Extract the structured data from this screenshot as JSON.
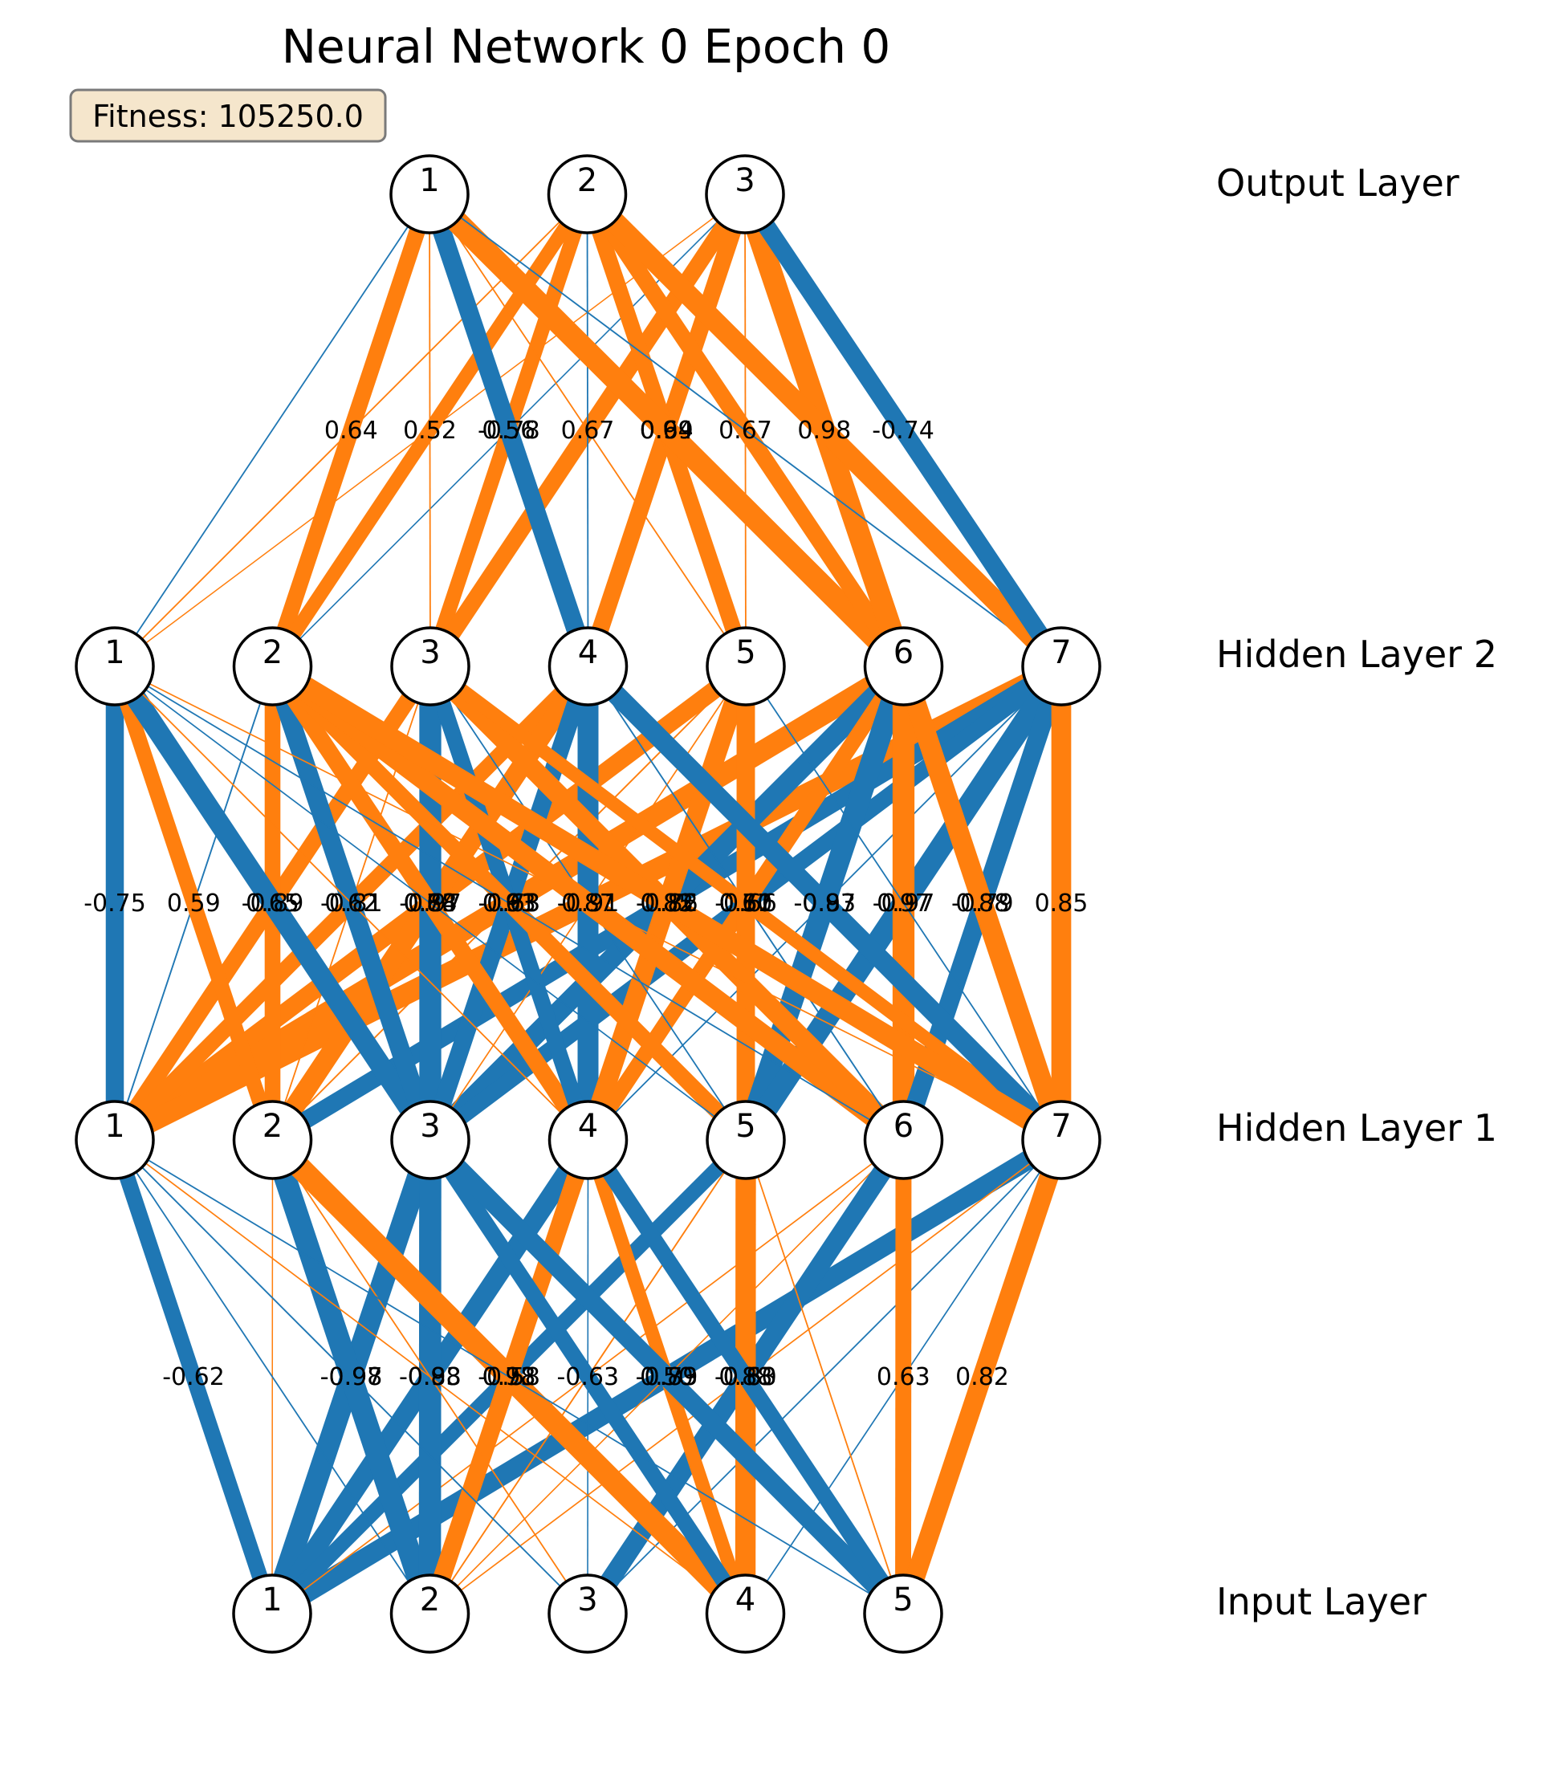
{
  "title": "Neural Network 0 Epoch 0",
  "fitness": "Fitness: 105250.0",
  "colors": {
    "positive": "#ff7f0e",
    "negative": "#1f77b4",
    "fitness_box_bg": "#f5e6cc",
    "fitness_box_border": "#7a7a7a"
  },
  "layers": [
    {
      "name": "Input Layer",
      "nodes": [
        "1",
        "2",
        "3",
        "4",
        "5"
      ]
    },
    {
      "name": "Hidden Layer 1",
      "nodes": [
        "1",
        "2",
        "3",
        "4",
        "5",
        "6",
        "7"
      ]
    },
    {
      "name": "Hidden Layer 2",
      "nodes": [
        "1",
        "2",
        "3",
        "4",
        "5",
        "6",
        "7"
      ]
    },
    {
      "name": "Output Layer",
      "nodes": [
        "1",
        "2",
        "3"
      ]
    }
  ],
  "edges": [
    {
      "from": [
        0,
        0
      ],
      "to": [
        1,
        0
      ],
      "w": -0.62,
      "label": "-0.62"
    },
    {
      "from": [
        0,
        0
      ],
      "to": [
        1,
        2
      ],
      "w": -0.97,
      "label": "-0.97"
    },
    {
      "from": [
        0,
        0
      ],
      "to": [
        1,
        3
      ],
      "w": -0.83,
      "label": "-0.83"
    },
    {
      "from": [
        0,
        0
      ],
      "to": [
        1,
        6
      ],
      "w": -0.83,
      "label": "-0.83"
    },
    {
      "from": [
        0,
        0
      ],
      "to": [
        1,
        4
      ],
      "w": -0.58,
      "label": "-0.58"
    },
    {
      "from": [
        0,
        0
      ],
      "to": [
        1,
        1
      ],
      "w": 0.05
    },
    {
      "from": [
        0,
        0
      ],
      "to": [
        1,
        5
      ],
      "w": 0.08
    },
    {
      "from": [
        0,
        1
      ],
      "to": [
        1,
        1
      ],
      "w": -0.98,
      "label": "-0.98"
    },
    {
      "from": [
        0,
        1
      ],
      "to": [
        1,
        2
      ],
      "w": -0.98,
      "label": "-0.98"
    },
    {
      "from": [
        0,
        1
      ],
      "to": [
        1,
        3
      ],
      "w": 0.73,
      "label": "0.73"
    },
    {
      "from": [
        0,
        1
      ],
      "to": [
        1,
        0
      ],
      "w": -0.1
    },
    {
      "from": [
        0,
        1
      ],
      "to": [
        1,
        4
      ],
      "w": 0.12
    },
    {
      "from": [
        0,
        1
      ],
      "to": [
        1,
        5
      ],
      "w": 0.06
    },
    {
      "from": [
        0,
        1
      ],
      "to": [
        1,
        6
      ],
      "w": 0.09
    },
    {
      "from": [
        0,
        2
      ],
      "to": [
        1,
        5
      ],
      "w": -0.8,
      "label": "-0.80"
    },
    {
      "from": [
        0,
        2
      ],
      "to": [
        1,
        0
      ],
      "w": -0.12
    },
    {
      "from": [
        0,
        2
      ],
      "to": [
        1,
        1
      ],
      "w": 0.1
    },
    {
      "from": [
        0,
        2
      ],
      "to": [
        1,
        3
      ],
      "w": -0.07
    },
    {
      "from": [
        0,
        2
      ],
      "to": [
        1,
        6
      ],
      "w": -0.1
    },
    {
      "from": [
        0,
        3
      ],
      "to": [
        1,
        1
      ],
      "w": 0.98,
      "label": "0.98"
    },
    {
      "from": [
        0,
        3
      ],
      "to": [
        1,
        3
      ],
      "w": 0.5,
      "label": "0.50"
    },
    {
      "from": [
        0,
        3
      ],
      "to": [
        1,
        4
      ],
      "w": 0.88,
      "label": "0.88"
    },
    {
      "from": [
        0,
        3
      ],
      "to": [
        1,
        2
      ],
      "w": -0.63,
      "label": "-0.63"
    },
    {
      "from": [
        0,
        3
      ],
      "to": [
        1,
        0
      ],
      "w": 0.08
    },
    {
      "from": [
        0,
        3
      ],
      "to": [
        1,
        6
      ],
      "w": -0.09
    },
    {
      "from": [
        0,
        4
      ],
      "to": [
        1,
        2
      ],
      "w": -0.79,
      "label": "-0.79"
    },
    {
      "from": [
        0,
        4
      ],
      "to": [
        1,
        3
      ],
      "w": -0.63,
      "label": "-0.63"
    },
    {
      "from": [
        0,
        4
      ],
      "to": [
        1,
        5
      ],
      "w": 0.63,
      "label": "0.63"
    },
    {
      "from": [
        0,
        4
      ],
      "to": [
        1,
        6
      ],
      "w": 0.82,
      "label": "0.82"
    },
    {
      "from": [
        0,
        4
      ],
      "to": [
        1,
        0
      ],
      "w": -0.1
    },
    {
      "from": [
        0,
        4
      ],
      "to": [
        1,
        4
      ],
      "w": 0.1
    },
    {
      "from": [
        1,
        0
      ],
      "to": [
        2,
        0
      ],
      "w": -0.75,
      "label": "-0.75"
    },
    {
      "from": [
        1,
        0
      ],
      "to": [
        2,
        2
      ],
      "w": 0.65,
      "label": "0.65"
    },
    {
      "from": [
        1,
        0
      ],
      "to": [
        2,
        4
      ],
      "w": 0.73,
      "label": "0.73"
    },
    {
      "from": [
        1,
        0
      ],
      "to": [
        2,
        5
      ],
      "w": 0.91,
      "label": "0.91"
    },
    {
      "from": [
        1,
        0
      ],
      "to": [
        2,
        3
      ],
      "w": 0.62,
      "label": "0.62"
    },
    {
      "from": [
        1,
        0
      ],
      "to": [
        2,
        6
      ],
      "w": 0.91
    },
    {
      "from": [
        1,
        0
      ],
      "to": [
        2,
        1
      ],
      "w": -0.12
    },
    {
      "from": [
        1,
        1
      ],
      "to": [
        2,
        0
      ],
      "w": 0.59,
      "label": "0.59"
    },
    {
      "from": [
        1,
        1
      ],
      "to": [
        2,
        1
      ],
      "w": 0.62
    },
    {
      "from": [
        1,
        1
      ],
      "to": [
        2,
        3
      ],
      "w": 0.84,
      "label": "0.84"
    },
    {
      "from": [
        1,
        1
      ],
      "to": [
        2,
        6
      ],
      "w": -0.72,
      "label": "-0.72"
    },
    {
      "from": [
        1,
        1
      ],
      "to": [
        2,
        2
      ],
      "w": 0.1
    },
    {
      "from": [
        1,
        1
      ],
      "to": [
        2,
        4
      ],
      "w": 0.12
    },
    {
      "from": [
        1,
        2
      ],
      "to": [
        2,
        0
      ],
      "w": -0.89,
      "label": "-0.89"
    },
    {
      "from": [
        1,
        2
      ],
      "to": [
        2,
        1
      ],
      "w": -0.81,
      "label": "-0.81"
    },
    {
      "from": [
        1,
        2
      ],
      "to": [
        2,
        2
      ],
      "w": -0.97,
      "label": "-0.97"
    },
    {
      "from": [
        1,
        2
      ],
      "to": [
        2,
        3
      ],
      "w": -0.73,
      "label": "-0.73"
    },
    {
      "from": [
        1,
        2
      ],
      "to": [
        2,
        5
      ],
      "w": -0.86,
      "label": "-0.86"
    },
    {
      "from": [
        1,
        2
      ],
      "to": [
        2,
        6
      ],
      "w": -0.66,
      "label": "-0.66"
    },
    {
      "from": [
        1,
        2
      ],
      "to": [
        2,
        4
      ],
      "w": 0.08
    },
    {
      "from": [
        1,
        3
      ],
      "to": [
        2,
        1
      ],
      "w": 0.68,
      "label": "0.68"
    },
    {
      "from": [
        1,
        3
      ],
      "to": [
        2,
        3
      ],
      "w": -0.91,
      "label": "-0.91"
    },
    {
      "from": [
        1,
        3
      ],
      "to": [
        2,
        2
      ],
      "w": -0.63,
      "label": "-0.63"
    },
    {
      "from": [
        1,
        3
      ],
      "to": [
        2,
        4
      ],
      "w": 0.82,
      "label": "0.82"
    },
    {
      "from": [
        1,
        3
      ],
      "to": [
        2,
        5
      ],
      "w": 0.61,
      "label": "0.61"
    },
    {
      "from": [
        1,
        3
      ],
      "to": [
        2,
        0
      ],
      "w": 0.1
    },
    {
      "from": [
        1,
        3
      ],
      "to": [
        2,
        6
      ],
      "w": -0.1
    },
    {
      "from": [
        1,
        4
      ],
      "to": [
        2,
        1
      ],
      "w": 0.63,
      "label": "0.63"
    },
    {
      "from": [
        1,
        4
      ],
      "to": [
        2,
        4
      ],
      "w": 0.77,
      "label": "0.77"
    },
    {
      "from": [
        1,
        4
      ],
      "to": [
        2,
        5
      ],
      "w": -0.97,
      "label": "-0.97"
    },
    {
      "from": [
        1,
        4
      ],
      "to": [
        2,
        6
      ],
      "w": -0.97,
      "label": "-0.97"
    },
    {
      "from": [
        1,
        4
      ],
      "to": [
        2,
        0
      ],
      "w": -0.08
    },
    {
      "from": [
        1,
        4
      ],
      "to": [
        2,
        2
      ],
      "w": -0.1
    },
    {
      "from": [
        1,
        5
      ],
      "to": [
        2,
        1
      ],
      "w": 0.87,
      "label": "0.87"
    },
    {
      "from": [
        1,
        5
      ],
      "to": [
        2,
        2
      ],
      "w": 0.85,
      "label": "0.85"
    },
    {
      "from": [
        1,
        5
      ],
      "to": [
        2,
        5
      ],
      "w": 0.97,
      "label": "0.97"
    },
    {
      "from": [
        1,
        5
      ],
      "to": [
        2,
        6
      ],
      "w": -0.79,
      "label": "-0.79"
    },
    {
      "from": [
        1,
        5
      ],
      "to": [
        2,
        0
      ],
      "w": -0.1
    },
    {
      "from": [
        1,
        5
      ],
      "to": [
        2,
        3
      ],
      "w": -0.12
    },
    {
      "from": [
        1,
        6
      ],
      "to": [
        2,
        2
      ],
      "w": 0.5,
      "label": "0.50"
    },
    {
      "from": [
        1,
        6
      ],
      "to": [
        2,
        3
      ],
      "w": -0.83,
      "label": "-0.83"
    },
    {
      "from": [
        1,
        6
      ],
      "to": [
        2,
        5
      ],
      "w": 0.88,
      "label": "0.88"
    },
    {
      "from": [
        1,
        6
      ],
      "to": [
        2,
        6
      ],
      "w": 0.85,
      "label": "0.85"
    },
    {
      "from": [
        1,
        6
      ],
      "to": [
        2,
        1
      ],
      "w": 0.86
    },
    {
      "from": [
        1,
        6
      ],
      "to": [
        2,
        0
      ],
      "w": 0.08
    },
    {
      "from": [
        1,
        6
      ],
      "to": [
        2,
        4
      ],
      "w": -0.1
    },
    {
      "from": [
        2,
        0
      ],
      "to": [
        3,
        0
      ],
      "w": -0.1
    },
    {
      "from": [
        2,
        0
      ],
      "to": [
        3,
        1
      ],
      "w": 0.1
    },
    {
      "from": [
        2,
        0
      ],
      "to": [
        3,
        2
      ],
      "w": 0.05
    },
    {
      "from": [
        2,
        1
      ],
      "to": [
        3,
        0
      ],
      "w": 0.64,
      "label": "0.64"
    },
    {
      "from": [
        2,
        1
      ],
      "to": [
        3,
        1
      ],
      "w": 0.52,
      "label": "0.52"
    },
    {
      "from": [
        2,
        1
      ],
      "to": [
        3,
        2
      ],
      "w": -0.06
    },
    {
      "from": [
        2,
        2
      ],
      "to": [
        3,
        0
      ],
      "w": 0.1
    },
    {
      "from": [
        2,
        2
      ],
      "to": [
        3,
        1
      ],
      "w": 0.56,
      "label": "0.56"
    },
    {
      "from": [
        2,
        2
      ],
      "to": [
        3,
        2
      ],
      "w": 0.67,
      "label": "0.67"
    },
    {
      "from": [
        2,
        3
      ],
      "to": [
        3,
        0
      ],
      "w": -0.78,
      "label": "-0.78"
    },
    {
      "from": [
        2,
        3
      ],
      "to": [
        3,
        1
      ],
      "w": -0.1
    },
    {
      "from": [
        2,
        3
      ],
      "to": [
        3,
        2
      ],
      "w": 0.69,
      "label": "0.69"
    },
    {
      "from": [
        2,
        4
      ],
      "to": [
        3,
        0
      ],
      "w": 0.1
    },
    {
      "from": [
        2,
        4
      ],
      "to": [
        3,
        1
      ],
      "w": 0.64,
      "label": "0.64"
    },
    {
      "from": [
        2,
        4
      ],
      "to": [
        3,
        2
      ],
      "w": 0.1
    },
    {
      "from": [
        2,
        5
      ],
      "to": [
        3,
        0
      ],
      "w": 0.99,
      "label": "0.99"
    },
    {
      "from": [
        2,
        5
      ],
      "to": [
        3,
        1
      ],
      "w": 0.67,
      "label": "0.67"
    },
    {
      "from": [
        2,
        5
      ],
      "to": [
        3,
        2
      ],
      "w": 0.98,
      "label": "0.98"
    },
    {
      "from": [
        2,
        6
      ],
      "to": [
        3,
        0
      ],
      "w": -0.12
    },
    {
      "from": [
        2,
        6
      ],
      "to": [
        3,
        1
      ],
      "w": 0.9
    },
    {
      "from": [
        2,
        6
      ],
      "to": [
        3,
        2
      ],
      "w": -0.74,
      "label": "-0.74"
    }
  ]
}
